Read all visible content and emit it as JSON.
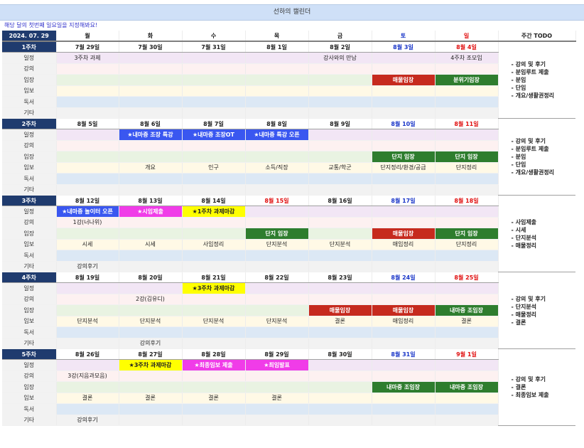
{
  "title": "선하의 캘린더",
  "instruction": "해당 달의 첫번째 일요일을 지정해봐요!",
  "header": {
    "date": "2024. 07. 29",
    "days": [
      "월",
      "화",
      "수",
      "목",
      "금",
      "토",
      "일"
    ],
    "todo": "주간 TODO"
  },
  "row_labels": [
    "일정",
    "강의",
    "임장",
    "임보",
    "독서",
    "기타"
  ],
  "colors": {
    "header_navy": "#1f3b6e",
    "title_bar": "#cfe0f7",
    "saturday": "#1a36c8",
    "sunday": "#e01010",
    "event_blue": "#3a57f0",
    "event_pink": "#f03ce8",
    "event_yellow": "#ffff00",
    "event_green": "#2e7d2e",
    "event_red": "#c62a1e"
  },
  "weeks": [
    {
      "label": "1주차",
      "dates": [
        {
          "text": "7월 29일",
          "color": "wkd"
        },
        {
          "text": "7월 30일",
          "color": "wkd"
        },
        {
          "text": "7월 31일",
          "color": "wkd"
        },
        {
          "text": "8월 1일",
          "color": "wkd"
        },
        {
          "text": "8월 2일",
          "color": "wkd"
        },
        {
          "text": "8월 3일",
          "color": "sat"
        },
        {
          "text": "8월 4일",
          "color": "sun"
        }
      ],
      "rows": [
        [
          {
            "t": "3주차 과제"
          },
          {
            "t": ""
          },
          {
            "t": ""
          },
          {
            "t": ""
          },
          {
            "t": "강사와의 만남"
          },
          {
            "t": ""
          },
          {
            "t": "4주차 조모임"
          }
        ],
        [
          {
            "t": ""
          },
          {
            "t": ""
          },
          {
            "t": ""
          },
          {
            "t": ""
          },
          {
            "t": ""
          },
          {
            "t": ""
          },
          {
            "t": ""
          }
        ],
        [
          {
            "t": ""
          },
          {
            "t": ""
          },
          {
            "t": ""
          },
          {
            "t": ""
          },
          {
            "t": ""
          },
          {
            "t": "매물임장",
            "s": "red"
          },
          {
            "t": "분위기임장",
            "s": "green"
          }
        ],
        [
          {
            "t": ""
          },
          {
            "t": ""
          },
          {
            "t": ""
          },
          {
            "t": ""
          },
          {
            "t": ""
          },
          {
            "t": ""
          },
          {
            "t": ""
          }
        ],
        [
          {
            "t": ""
          },
          {
            "t": ""
          },
          {
            "t": ""
          },
          {
            "t": ""
          },
          {
            "t": ""
          },
          {
            "t": ""
          },
          {
            "t": ""
          }
        ],
        [
          {
            "t": ""
          },
          {
            "t": ""
          },
          {
            "t": ""
          },
          {
            "t": ""
          },
          {
            "t": ""
          },
          {
            "t": ""
          },
          {
            "t": ""
          }
        ]
      ],
      "todo": [
        "- 강의 및 후기",
        "- 분임루트 제출",
        "- 분임",
        "- 단임",
        "- 개요/생활권정리"
      ]
    },
    {
      "label": "2주차",
      "dates": [
        {
          "text": "8월 5일",
          "color": "wkd"
        },
        {
          "text": "8월 6일",
          "color": "wkd"
        },
        {
          "text": "8월 7일",
          "color": "wkd"
        },
        {
          "text": "8월 8일",
          "color": "wkd"
        },
        {
          "text": "8월 9일",
          "color": "wkd"
        },
        {
          "text": "8월 10일",
          "color": "sat"
        },
        {
          "text": "8월 11일",
          "color": "sun"
        }
      ],
      "rows": [
        [
          {
            "t": ""
          },
          {
            "t": "★내마중 조장 특강",
            "s": "blue"
          },
          {
            "t": "★내마중 조장OT",
            "s": "blue"
          },
          {
            "t": "★내마중 특강 오픈",
            "s": "blue"
          },
          {
            "t": ""
          },
          {
            "t": ""
          },
          {
            "t": ""
          }
        ],
        [
          {
            "t": ""
          },
          {
            "t": ""
          },
          {
            "t": ""
          },
          {
            "t": ""
          },
          {
            "t": ""
          },
          {
            "t": ""
          },
          {
            "t": ""
          }
        ],
        [
          {
            "t": ""
          },
          {
            "t": ""
          },
          {
            "t": ""
          },
          {
            "t": ""
          },
          {
            "t": ""
          },
          {
            "t": "단지 임장",
            "s": "green"
          },
          {
            "t": "단지 임장",
            "s": "green"
          }
        ],
        [
          {
            "t": ""
          },
          {
            "t": "개요"
          },
          {
            "t": "인구"
          },
          {
            "t": "소득/직장"
          },
          {
            "t": "교통/학군"
          },
          {
            "t": "단지정리/환경/공급"
          },
          {
            "t": "단지정리"
          }
        ],
        [
          {
            "t": ""
          },
          {
            "t": ""
          },
          {
            "t": ""
          },
          {
            "t": ""
          },
          {
            "t": ""
          },
          {
            "t": ""
          },
          {
            "t": ""
          }
        ],
        [
          {
            "t": ""
          },
          {
            "t": ""
          },
          {
            "t": ""
          },
          {
            "t": ""
          },
          {
            "t": ""
          },
          {
            "t": ""
          },
          {
            "t": ""
          }
        ]
      ],
      "todo": [
        "- 강의 및 후기",
        "- 분임루트 제출",
        "- 분임",
        "- 단임",
        "- 개요/생활권정리"
      ]
    },
    {
      "label": "3주차",
      "dates": [
        {
          "text": "8월 12일",
          "color": "wkd"
        },
        {
          "text": "8월 13일",
          "color": "wkd"
        },
        {
          "text": "8월 14일",
          "color": "wkd"
        },
        {
          "text": "8월 15일",
          "color": "hol"
        },
        {
          "text": "8월 16일",
          "color": "wkd"
        },
        {
          "text": "8월 17일",
          "color": "sat"
        },
        {
          "text": "8월 18일",
          "color": "sun"
        }
      ],
      "rows": [
        [
          {
            "t": "★내마중 놀이터 오픈",
            "s": "blue"
          },
          {
            "t": "★시임제출",
            "s": "pink"
          },
          {
            "t": "★1주차 과제마감",
            "s": "yellow"
          },
          {
            "t": ""
          },
          {
            "t": ""
          },
          {
            "t": ""
          },
          {
            "t": ""
          }
        ],
        [
          {
            "t": "1강(너나위)"
          },
          {
            "t": ""
          },
          {
            "t": ""
          },
          {
            "t": ""
          },
          {
            "t": ""
          },
          {
            "t": ""
          },
          {
            "t": ""
          }
        ],
        [
          {
            "t": ""
          },
          {
            "t": ""
          },
          {
            "t": ""
          },
          {
            "t": "단지 임장",
            "s": "green"
          },
          {
            "t": ""
          },
          {
            "t": "매물임장",
            "s": "red"
          },
          {
            "t": "단지 임장",
            "s": "green"
          }
        ],
        [
          {
            "t": "시세"
          },
          {
            "t": "시세"
          },
          {
            "t": "사임정리"
          },
          {
            "t": "단지분석"
          },
          {
            "t": "단지분석"
          },
          {
            "t": "매임정리"
          },
          {
            "t": "단지정리"
          }
        ],
        [
          {
            "t": ""
          },
          {
            "t": ""
          },
          {
            "t": ""
          },
          {
            "t": ""
          },
          {
            "t": ""
          },
          {
            "t": ""
          },
          {
            "t": ""
          }
        ],
        [
          {
            "t": "강의후기"
          },
          {
            "t": ""
          },
          {
            "t": ""
          },
          {
            "t": ""
          },
          {
            "t": ""
          },
          {
            "t": ""
          },
          {
            "t": ""
          }
        ]
      ],
      "todo": [
        "- 사임제출",
        "- 시세",
        "- 단지분석",
        "- 매물정리"
      ]
    },
    {
      "label": "4주차",
      "dates": [
        {
          "text": "8월 19일",
          "color": "wkd"
        },
        {
          "text": "8월 20일",
          "color": "wkd"
        },
        {
          "text": "8월 21일",
          "color": "wkd"
        },
        {
          "text": "8월 22일",
          "color": "wkd"
        },
        {
          "text": "8월 23일",
          "color": "wkd"
        },
        {
          "text": "8월 24일",
          "color": "sat"
        },
        {
          "text": "8월 25일",
          "color": "sun"
        }
      ],
      "rows": [
        [
          {
            "t": ""
          },
          {
            "t": ""
          },
          {
            "t": "★3주차 과제마감",
            "s": "yellow"
          },
          {
            "t": ""
          },
          {
            "t": ""
          },
          {
            "t": ""
          },
          {
            "t": ""
          }
        ],
        [
          {
            "t": ""
          },
          {
            "t": "2강(김유디)"
          },
          {
            "t": ""
          },
          {
            "t": ""
          },
          {
            "t": ""
          },
          {
            "t": ""
          },
          {
            "t": ""
          }
        ],
        [
          {
            "t": ""
          },
          {
            "t": ""
          },
          {
            "t": ""
          },
          {
            "t": ""
          },
          {
            "t": "매물임장",
            "s": "red"
          },
          {
            "t": "매물임장",
            "s": "red"
          },
          {
            "t": "내마중 조임장",
            "s": "green"
          }
        ],
        [
          {
            "t": "단지분석"
          },
          {
            "t": "단지분석"
          },
          {
            "t": "단지분석"
          },
          {
            "t": "단지분석"
          },
          {
            "t": "결론"
          },
          {
            "t": "매임정리"
          },
          {
            "t": "결론"
          }
        ],
        [
          {
            "t": ""
          },
          {
            "t": ""
          },
          {
            "t": ""
          },
          {
            "t": ""
          },
          {
            "t": ""
          },
          {
            "t": ""
          },
          {
            "t": ""
          }
        ],
        [
          {
            "t": ""
          },
          {
            "t": "강의후기"
          },
          {
            "t": ""
          },
          {
            "t": ""
          },
          {
            "t": ""
          },
          {
            "t": ""
          },
          {
            "t": ""
          }
        ]
      ],
      "todo": [
        "- 강의 및 후기",
        "- 단지분석",
        "- 매물정리",
        "- 결론"
      ]
    },
    {
      "label": "5주차",
      "dates": [
        {
          "text": "8월 26일",
          "color": "wkd"
        },
        {
          "text": "8월 27일",
          "color": "wkd"
        },
        {
          "text": "8월 28일",
          "color": "wkd"
        },
        {
          "text": "8월 29일",
          "color": "wkd"
        },
        {
          "text": "8월 30일",
          "color": "wkd"
        },
        {
          "text": "8월 31일",
          "color": "sat"
        },
        {
          "text": "9월 1일",
          "color": "sun"
        }
      ],
      "rows": [
        [
          {
            "t": ""
          },
          {
            "t": "★3주차 과제마감",
            "s": "yellow"
          },
          {
            "t": "★최종임보 제출",
            "s": "pink"
          },
          {
            "t": "★최임발표",
            "s": "pink"
          },
          {
            "t": ""
          },
          {
            "t": ""
          },
          {
            "t": ""
          }
        ],
        [
          {
            "t": "3강(지음과모음)"
          },
          {
            "t": ""
          },
          {
            "t": ""
          },
          {
            "t": ""
          },
          {
            "t": ""
          },
          {
            "t": ""
          },
          {
            "t": ""
          }
        ],
        [
          {
            "t": ""
          },
          {
            "t": ""
          },
          {
            "t": ""
          },
          {
            "t": ""
          },
          {
            "t": ""
          },
          {
            "t": "내마중 조임장",
            "s": "green"
          },
          {
            "t": "내마중 조임장",
            "s": "green"
          }
        ],
        [
          {
            "t": "결론"
          },
          {
            "t": "결론"
          },
          {
            "t": "결론"
          },
          {
            "t": "결론"
          },
          {
            "t": ""
          },
          {
            "t": ""
          },
          {
            "t": ""
          }
        ],
        [
          {
            "t": ""
          },
          {
            "t": ""
          },
          {
            "t": ""
          },
          {
            "t": ""
          },
          {
            "t": ""
          },
          {
            "t": ""
          },
          {
            "t": ""
          }
        ],
        [
          {
            "t": "강의후기"
          },
          {
            "t": ""
          },
          {
            "t": ""
          },
          {
            "t": ""
          },
          {
            "t": ""
          },
          {
            "t": ""
          },
          {
            "t": ""
          }
        ]
      ],
      "todo": [
        "- 강의 및 후기",
        "- 결론",
        "- 최종임보 제출"
      ]
    }
  ]
}
